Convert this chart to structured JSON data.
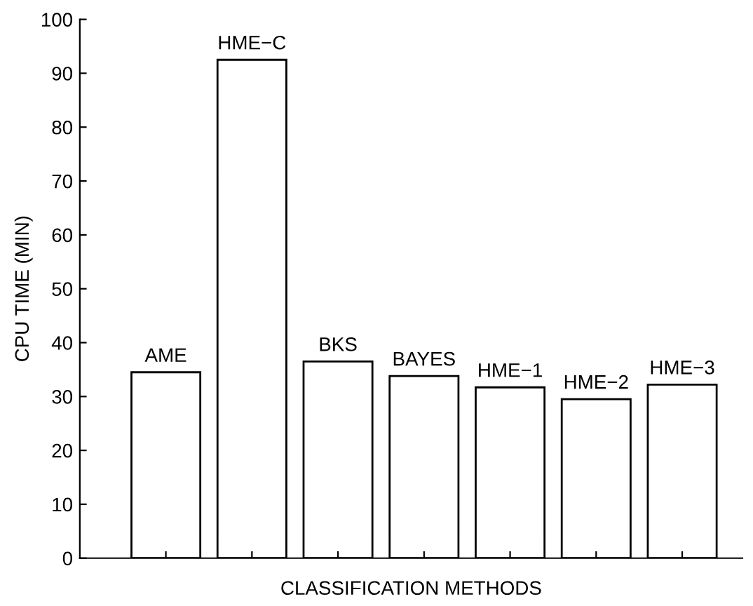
{
  "chart_data": {
    "type": "bar",
    "categories": [
      "AME",
      "HME−C",
      "BKS",
      "BAYES",
      "HME−1",
      "HME−2",
      "HME−3"
    ],
    "values": [
      34.5,
      92.5,
      36.5,
      33.8,
      31.7,
      29.5,
      32.2
    ],
    "color": "#ffffff",
    "xlabel": "CLASSIFICATION METHODS",
    "ylabel": "CPU TIME (MIN)",
    "ylim": [
      0,
      100
    ],
    "yticks": [
      0,
      10,
      20,
      30,
      40,
      50,
      60,
      70,
      80,
      90,
      100
    ],
    "grid": false
  }
}
